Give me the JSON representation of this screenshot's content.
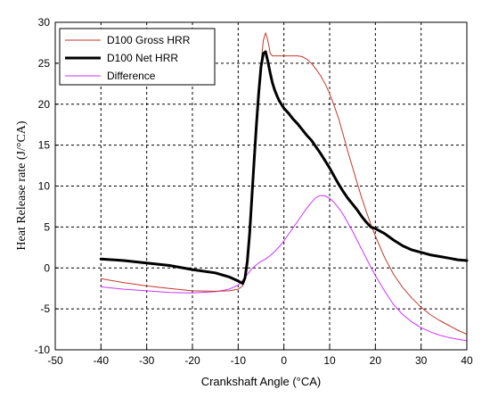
{
  "chart_data": {
    "type": "line",
    "xlabel": "Crankshaft Angle  (°CA)",
    "ylabel": "Heat Release rate (J/°CA)",
    "xlim": [
      -50,
      40
    ],
    "ylim": [
      -10,
      30
    ],
    "xticks": [
      -50,
      -40,
      -30,
      -20,
      -10,
      0,
      10,
      20,
      30,
      40
    ],
    "yticks": [
      -10,
      -5,
      0,
      5,
      10,
      15,
      20,
      25,
      30
    ],
    "grid": true,
    "grid_style": "dashed",
    "legend_position": "top-left",
    "series": [
      {
        "name": "D100 Gross  HRR",
        "color": "#c0392b",
        "linewidth": 1,
        "x": [
          -40,
          -35,
          -30,
          -25,
          -20,
          -15,
          -12,
          -10,
          -9,
          -8.5,
          -8,
          -7.5,
          -7,
          -6.5,
          -6,
          -5.5,
          -5,
          -4.5,
          -4,
          -3.7,
          -3.3,
          -3,
          -2.5,
          -2,
          -1.5,
          -1,
          0,
          1,
          2,
          3,
          4,
          5,
          6,
          7,
          8,
          9,
          10,
          11,
          12,
          13,
          14,
          15,
          16,
          17,
          18,
          19,
          20,
          22,
          24,
          26,
          28,
          30,
          32,
          34,
          36,
          38,
          40
        ],
        "y": [
          -1.3,
          -1.8,
          -2.2,
          -2.5,
          -2.8,
          -2.85,
          -2.8,
          -2.6,
          -2.2,
          -1,
          1,
          4,
          8,
          12.5,
          17,
          21,
          25,
          27.8,
          28.7,
          28.2,
          27.2,
          26.2,
          25.9,
          25.9,
          25.9,
          25.9,
          25.9,
          25.9,
          25.9,
          25.9,
          25.8,
          25.5,
          25,
          24.3,
          23.5,
          22.5,
          21.3,
          19.8,
          18.2,
          16.2,
          14.2,
          12.3,
          10.4,
          8.6,
          6.9,
          5.3,
          3.9,
          1.3,
          -0.8,
          -2.4,
          -3.7,
          -4.8,
          -5.7,
          -6.4,
          -7.0,
          -7.6,
          -8.1
        ]
      },
      {
        "name": "D100 Net HRR",
        "color": "#000000",
        "linewidth": 3,
        "x": [
          -40,
          -35,
          -30,
          -25,
          -20,
          -15,
          -12,
          -10,
          -9,
          -8.5,
          -8,
          -7.5,
          -7,
          -6.5,
          -6,
          -5.5,
          -5,
          -4.5,
          -4,
          -3.5,
          -3,
          -2.5,
          -2,
          -1.5,
          -1,
          0,
          1,
          2,
          3,
          4,
          5,
          6,
          7,
          8,
          9,
          10,
          11,
          12,
          13,
          14,
          15,
          16,
          17,
          18,
          19,
          20,
          22,
          24,
          26,
          28,
          30,
          32,
          34,
          36,
          38,
          40
        ],
        "y": [
          1.1,
          0.9,
          0.6,
          0.3,
          -0.2,
          -0.6,
          -1.1,
          -1.6,
          -1.9,
          -1.2,
          0.8,
          4.2,
          8.6,
          13.2,
          17.6,
          21.4,
          24.6,
          26.2,
          26.4,
          25.2,
          23.8,
          22.6,
          21.7,
          21,
          20.4,
          19.5,
          18.9,
          18.2,
          17.6,
          16.9,
          16.2,
          15.6,
          14.8,
          14,
          13.1,
          12.2,
          11.2,
          10.2,
          9.3,
          8.5,
          7.8,
          7.1,
          6.3,
          5.6,
          5,
          4.8,
          4.2,
          3.4,
          2.7,
          2.2,
          1.9,
          1.6,
          1.4,
          1.2,
          1.0,
          0.9
        ]
      },
      {
        "name": "Difference",
        "color": "#cc33ff",
        "linewidth": 1,
        "x": [
          -40,
          -35,
          -30,
          -25,
          -20,
          -15,
          -12,
          -10,
          -9,
          -8,
          -7,
          -6,
          -5,
          -4,
          -3,
          -2,
          -1,
          0,
          1,
          2,
          3,
          4,
          5,
          6,
          7,
          8,
          9,
          10,
          11,
          12,
          13,
          14,
          15,
          16,
          17,
          18,
          19,
          20,
          22,
          24,
          26,
          28,
          30,
          32,
          34,
          36,
          38,
          40
        ],
        "y": [
          -2.3,
          -2.6,
          -2.8,
          -3.0,
          -3.05,
          -2.9,
          -2.6,
          -2.1,
          -1.5,
          -0.8,
          -0.1,
          0.4,
          0.8,
          1.1,
          1.5,
          2,
          2.6,
          3.3,
          4.1,
          4.9,
          5.7,
          6.5,
          7.3,
          8,
          8.6,
          8.85,
          8.8,
          8.5,
          8,
          7.3,
          6.5,
          5.5,
          4.5,
          3.4,
          2.3,
          1.2,
          0.1,
          -0.9,
          -2.8,
          -4.5,
          -5.7,
          -6.6,
          -7.3,
          -7.8,
          -8.2,
          -8.5,
          -8.7,
          -8.9
        ]
      }
    ]
  }
}
